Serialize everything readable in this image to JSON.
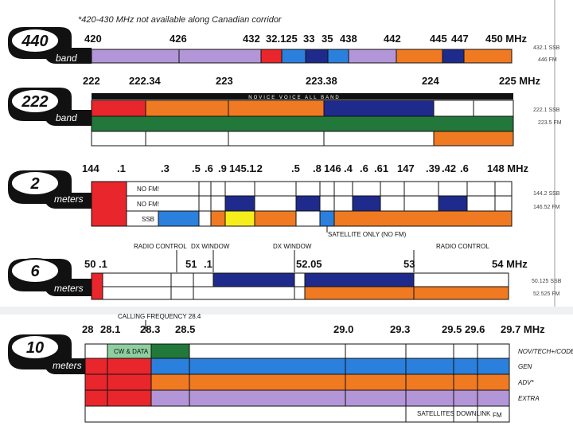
{
  "colors": {
    "red": "#e8262c",
    "orange": "#f07a22",
    "purple": "#b296d8",
    "blue": "#2a80dc",
    "navy": "#1e2a8c",
    "green": "#22783a",
    "lightgreen": "#8ecf9f",
    "yellow": "#f6ee1a",
    "white": "#ffffff",
    "black": "#111111"
  },
  "note_top": "*420-430 MHz not available along Canadian corridor",
  "bands": [
    {
      "id": "440",
      "number": "440",
      "subtitle": "band",
      "freq_labels": [
        "420",
        "426",
        "432",
        "32.125",
        "33",
        "35",
        "438",
        "442",
        "445",
        "447",
        "450 MHz"
      ],
      "right_notes": [
        "432.1 SSB",
        "446 FM"
      ]
    },
    {
      "id": "222",
      "number": "222",
      "subtitle": "band",
      "freq_labels": [
        "222",
        "222.34",
        "223",
        "223.38",
        "224",
        "225 MHz"
      ],
      "header_label": "NOVICE VOICE ALL BAND",
      "right_notes": [
        "222.1 SSB",
        "223.5 FM"
      ]
    },
    {
      "id": "2m",
      "number": "2",
      "subtitle": "meters",
      "freq_labels": [
        "144",
        ".1",
        ".3",
        ".5",
        ".6",
        ".9",
        "145.1",
        ".2",
        ".5",
        ".8",
        "146",
        ".4",
        ".6",
        ".61",
        "147",
        ".39",
        ".42",
        ".6",
        "148 MHz"
      ],
      "row_labels": [
        "NO FM!",
        "NO FM!",
        "SSB"
      ],
      "below_label": "SATELLITE ONLY (NO FM)",
      "right_notes": [
        "144.2 SSB",
        "146.52 FM"
      ]
    },
    {
      "id": "6m",
      "number": "6",
      "subtitle": "meters",
      "freq_labels": [
        "50",
        ".1",
        "51",
        ".1",
        "52.05",
        "53",
        "54 MHz"
      ],
      "above_labels": [
        "RADIO CONTROL",
        "DX WINDOW",
        "DX WINDOW",
        "RADIO CONTROL"
      ],
      "right_notes": [
        "50.125 SSB",
        "52.525 FM"
      ]
    },
    {
      "id": "10m",
      "number": "10",
      "subtitle": "meters",
      "freq_labels": [
        "28",
        "28.1",
        "28.3",
        "28.5",
        "29.0",
        "29.3",
        "29.5",
        "29.6",
        "29.7 MHz"
      ],
      "above_label": "CALLING FREQUENCY 28.4",
      "cw_label": "CW & DATA",
      "row_names": [
        "NOV/TECH+/CODE",
        "GEN",
        "ADV*",
        "EXTRA"
      ],
      "below_labels": [
        "SATELLITES DOWNLINK",
        "FM"
      ]
    }
  ]
}
